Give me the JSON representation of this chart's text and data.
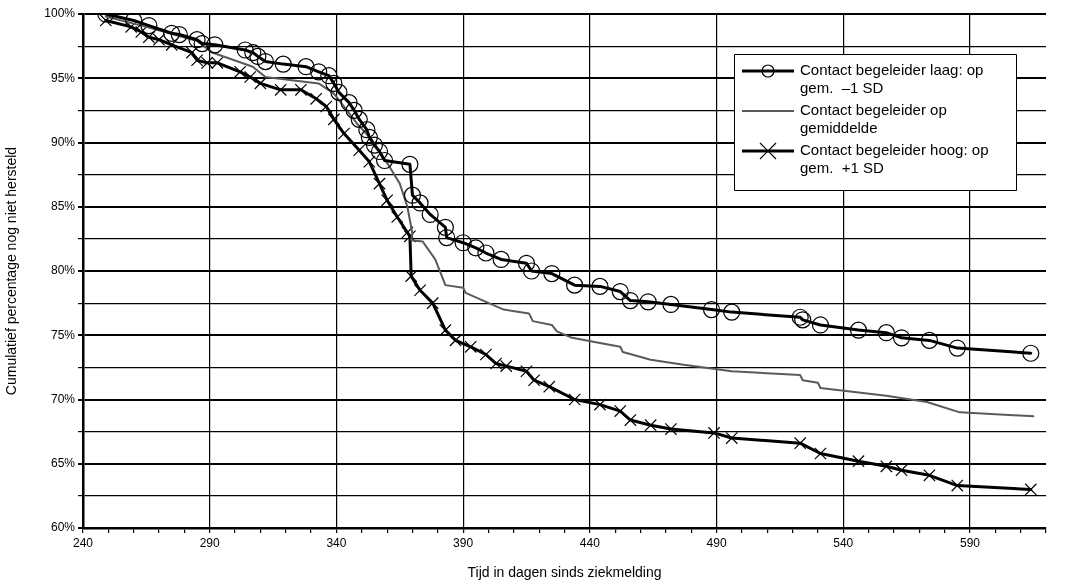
{
  "chart_data": {
    "type": "line",
    "xlabel": "Tijd in dagen sinds ziekmelding",
    "ylabel": "Cumulatief percentage nog niet hersteld",
    "xlim": [
      240,
      620
    ],
    "xticks": [
      240,
      {
        "value": 250,
        "label": null
      },
      {
        "value": 260,
        "label": null
      },
      {
        "value": 270,
        "label": null
      },
      {
        "value": 280,
        "label": null
      },
      290,
      {
        "value": 300,
        "label": null
      },
      {
        "value": 310,
        "label": null
      },
      {
        "value": 320,
        "label": null
      },
      {
        "value": 330,
        "label": null
      },
      340,
      {
        "value": 350,
        "label": null
      },
      {
        "value": 360,
        "label": null
      },
      {
        "value": 370,
        "label": null
      },
      {
        "value": 380,
        "label": null
      },
      390,
      {
        "value": 400,
        "label": null
      },
      {
        "value": 410,
        "label": null
      },
      {
        "value": 420,
        "label": null
      },
      {
        "value": 430,
        "label": null
      },
      440,
      {
        "value": 450,
        "label": null
      },
      {
        "value": 460,
        "label": null
      },
      {
        "value": 470,
        "label": null
      },
      {
        "value": 480,
        "label": null
      },
      490,
      {
        "value": 500,
        "label": null
      },
      {
        "value": 510,
        "label": null
      },
      {
        "value": 520,
        "label": null
      },
      {
        "value": 530,
        "label": null
      },
      540,
      {
        "value": 550,
        "label": null
      },
      {
        "value": 560,
        "label": null
      },
      {
        "value": 570,
        "label": null
      },
      {
        "value": 580,
        "label": null
      },
      590,
      {
        "value": 600,
        "label": null
      },
      {
        "value": 610,
        "label": null
      },
      {
        "value": 620,
        "label": null
      }
    ],
    "ylim": [
      60,
      100
    ],
    "yticks": [
      {
        "value": 60,
        "label": "60%"
      },
      {
        "value": 62.5,
        "label": null
      },
      {
        "value": 65,
        "label": "65%"
      },
      {
        "value": 67.5,
        "label": null
      },
      {
        "value": 70,
        "label": "70%"
      },
      {
        "value": 72.5,
        "label": null
      },
      {
        "value": 75,
        "label": "75%"
      },
      {
        "value": 77.5,
        "label": null
      },
      {
        "value": 80,
        "label": "80%"
      },
      {
        "value": 82.5,
        "label": null
      },
      {
        "value": 85,
        "label": "85%"
      },
      {
        "value": 87.5,
        "label": null
      },
      {
        "value": 90,
        "label": "90%"
      },
      {
        "value": 92.5,
        "label": null
      },
      {
        "value": 95,
        "label": "95%"
      },
      {
        "value": 97.5,
        "label": null
      },
      {
        "value": 100,
        "label": "100%"
      }
    ],
    "grid": true,
    "legend": "top right",
    "line_style": "solid",
    "series": [
      {
        "name": "Contact begeleider laag: op gem.  –1 SD",
        "color": "#000000",
        "marker": "circle",
        "x": [
          249,
          260,
          266,
          275,
          278,
          285,
          287,
          292,
          304,
          307,
          309,
          312,
          319,
          328,
          333,
          337,
          339,
          341,
          345,
          347,
          349,
          352,
          353,
          355,
          357,
          359,
          369,
          370,
          373,
          377,
          383,
          383.5,
          390,
          395,
          399,
          405,
          415,
          417,
          425,
          434,
          444,
          452,
          456,
          463,
          472,
          488,
          496,
          523,
          524,
          531,
          546,
          557,
          563,
          574,
          585,
          614
        ],
        "values": [
          100,
          99.5,
          99.1,
          98.5,
          98.4,
          98.0,
          97.7,
          97.6,
          97.2,
          97.0,
          96.7,
          96.3,
          96.1,
          95.9,
          95.5,
          95.2,
          94.6,
          93.9,
          93.1,
          92.5,
          91.8,
          91.0,
          90.4,
          89.8,
          89.3,
          88.6,
          88.3,
          85.9,
          85.3,
          84.4,
          83.4,
          82.6,
          82.2,
          81.8,
          81.4,
          80.9,
          80.6,
          80.0,
          79.8,
          78.9,
          78.8,
          78.4,
          77.7,
          77.6,
          77.4,
          77.0,
          76.8,
          76.4,
          76.2,
          75.8,
          75.4,
          75.2,
          74.8,
          74.6,
          74.0,
          73.6
        ]
      },
      {
        "name": "Contact begeleider op gemiddelde",
        "color": "#5a5a5a",
        "marker": "none",
        "x": [
          249,
          265,
          285,
          291,
          307,
          312,
          333,
          339,
          343,
          348,
          354,
          361,
          365,
          368,
          370,
          369.5,
          374,
          379,
          383,
          390,
          391,
          399,
          406,
          416,
          417.5,
          425,
          427,
          433,
          444,
          452,
          453,
          464,
          477,
          496,
          523,
          524,
          530,
          531,
          557,
          573,
          586,
          615
        ],
        "values": [
          99.8,
          99.0,
          97.9,
          97.0,
          95.9,
          95.1,
          94.6,
          93.8,
          92.8,
          91.5,
          90.2,
          88.1,
          86.8,
          85.0,
          82.9,
          82.4,
          82.3,
          80.9,
          78.9,
          78.7,
          78.3,
          77.6,
          77.0,
          76.7,
          76.1,
          75.8,
          75.3,
          74.8,
          74.4,
          74.1,
          73.7,
          73.1,
          72.7,
          72.2,
          71.9,
          71.5,
          71.3,
          70.9,
          70.3,
          69.8,
          69.0,
          68.7
        ]
      },
      {
        "name": "Contact begeleider hoog: op gem.  +1 SD",
        "color": "#000000",
        "marker": "cross",
        "x": [
          249,
          259,
          263,
          266,
          270,
          275,
          283,
          285,
          289,
          293,
          302,
          306,
          310,
          318,
          326,
          332,
          336,
          339,
          343,
          349,
          353,
          357,
          360,
          364,
          368,
          369,
          369.5,
          373,
          378,
          383,
          387,
          393,
          399,
          403,
          407,
          415,
          418,
          424,
          434,
          444,
          452,
          456,
          464,
          472,
          489,
          496,
          523,
          531,
          546,
          557,
          563,
          574,
          585,
          614
        ],
        "values": [
          99.5,
          99.0,
          98.6,
          98.2,
          98.0,
          97.6,
          97.0,
          96.4,
          96.2,
          96.2,
          95.5,
          95.1,
          94.6,
          94.1,
          94.1,
          93.4,
          92.8,
          91.8,
          90.7,
          89.4,
          88.5,
          86.8,
          85.5,
          84.2,
          83.0,
          82.7,
          79.6,
          78.5,
          77.5,
          75.4,
          74.6,
          74.1,
          73.5,
          72.8,
          72.6,
          72.2,
          71.5,
          71.0,
          70.0,
          69.6,
          69.1,
          68.4,
          68.0,
          67.7,
          67.4,
          67.0,
          66.6,
          65.8,
          65.2,
          64.8,
          64.5,
          64.1,
          63.3,
          63.0
        ]
      }
    ]
  }
}
